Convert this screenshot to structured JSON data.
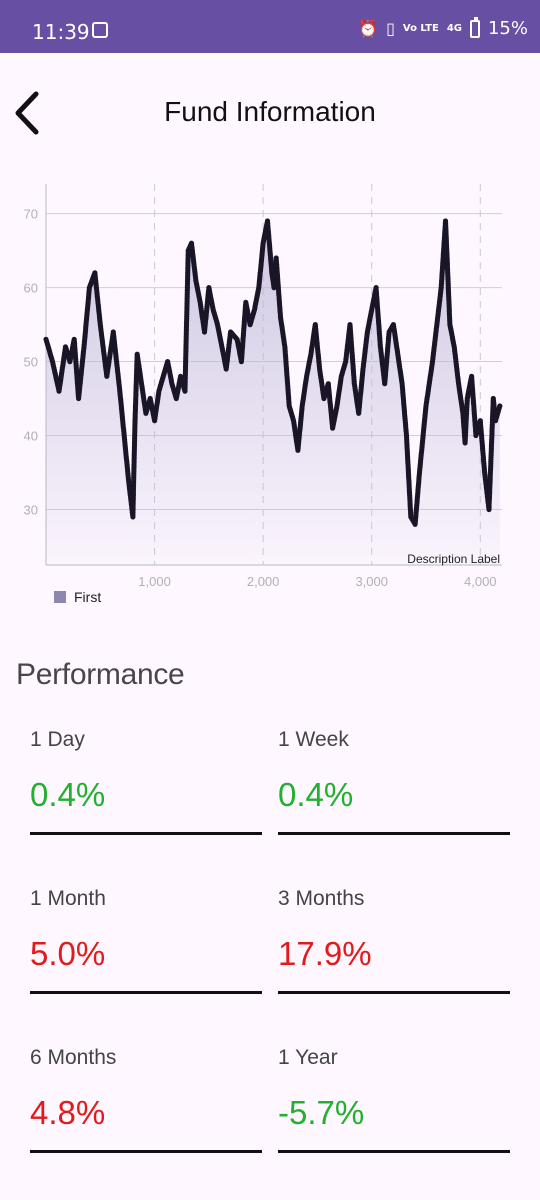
{
  "status_bar": {
    "time": "11:39",
    "battery": "15%",
    "signal": "4G",
    "volte": "Vo LTE",
    "icons": [
      "alarm-icon",
      "vibrate-icon",
      "volte-icon",
      "signal-icon",
      "battery-icon"
    ]
  },
  "header": {
    "title": "Fund Information",
    "back_icon": "chevron-left-icon"
  },
  "chart_data": {
    "type": "line",
    "ylim": [
      22.5,
      74
    ],
    "xlim": [
      0,
      4200
    ],
    "y_ticks": [
      "30",
      "40",
      "50",
      "60",
      "70"
    ],
    "x_ticks": [
      "1,000",
      "2,000",
      "3,000",
      "4,000"
    ],
    "description": "Description Label",
    "grid": true,
    "legend_position": "bottom-left",
    "series": [
      {
        "name": "First",
        "color": "#8C88AD",
        "marker_color": "#1a1527",
        "x": [
          0,
          60,
          120,
          180,
          220,
          260,
          300,
          350,
          400,
          450,
          500,
          560,
          620,
          680,
          720,
          760,
          800,
          820,
          840,
          880,
          920,
          960,
          1000,
          1040,
          1080,
          1120,
          1160,
          1200,
          1240,
          1280,
          1310,
          1340,
          1380,
          1420,
          1460,
          1500,
          1540,
          1580,
          1620,
          1660,
          1700,
          1760,
          1800,
          1840,
          1880,
          1920,
          1960,
          2000,
          2040,
          2080,
          2100,
          2120,
          2160,
          2200,
          2240,
          2280,
          2320,
          2360,
          2400,
          2440,
          2480,
          2520,
          2560,
          2600,
          2640,
          2680,
          2720,
          2760,
          2800,
          2840,
          2880,
          2920,
          2960,
          3000,
          3040,
          3080,
          3120,
          3160,
          3200,
          3240,
          3280,
          3320,
          3360,
          3400,
          3440,
          3480,
          3500,
          3520,
          3560,
          3600,
          3640,
          3680,
          3720,
          3760,
          3800,
          3840,
          3860,
          3880,
          3920,
          3960,
          4000,
          4040,
          4080,
          4120,
          4140,
          4180
        ],
        "values": [
          53,
          50,
          46,
          52,
          50,
          53,
          45,
          52,
          60,
          62,
          55,
          48,
          54,
          46,
          40,
          34,
          29,
          42,
          51,
          47,
          43,
          45,
          42,
          46,
          48,
          50,
          47,
          45,
          48,
          46,
          65,
          66,
          61,
          58,
          54,
          60,
          57,
          55,
          52,
          49,
          54,
          53,
          50,
          58,
          55,
          57,
          60,
          66,
          69,
          62,
          60,
          64,
          56,
          52,
          44,
          42,
          38,
          44,
          48,
          51,
          55,
          49,
          45,
          47,
          41,
          44,
          48,
          50,
          55,
          47,
          43,
          49,
          54,
          57,
          60,
          52,
          47,
          54,
          55,
          51,
          47,
          40,
          29,
          28,
          35,
          41,
          44,
          46,
          50,
          55,
          60,
          69,
          55,
          52,
          47,
          43,
          39,
          45,
          48,
          40,
          42,
          35,
          30,
          45,
          42,
          44
        ]
      }
    ]
  },
  "performance": {
    "title": "Performance",
    "items": [
      {
        "label": "1 Day",
        "value": "0.4%",
        "color": "#22B02E"
      },
      {
        "label": "1 Week",
        "value": "0.4%",
        "color": "#22B02E"
      },
      {
        "label": "1 Month",
        "value": "5.0%",
        "color": "#E11B1B"
      },
      {
        "label": "3 Months",
        "value": "17.9%",
        "color": "#E11B1B"
      },
      {
        "label": "6 Months",
        "value": "4.8%",
        "color": "#E11B1B"
      },
      {
        "label": "1 Year",
        "value": "-5.7%",
        "color": "#22B02E"
      }
    ]
  }
}
